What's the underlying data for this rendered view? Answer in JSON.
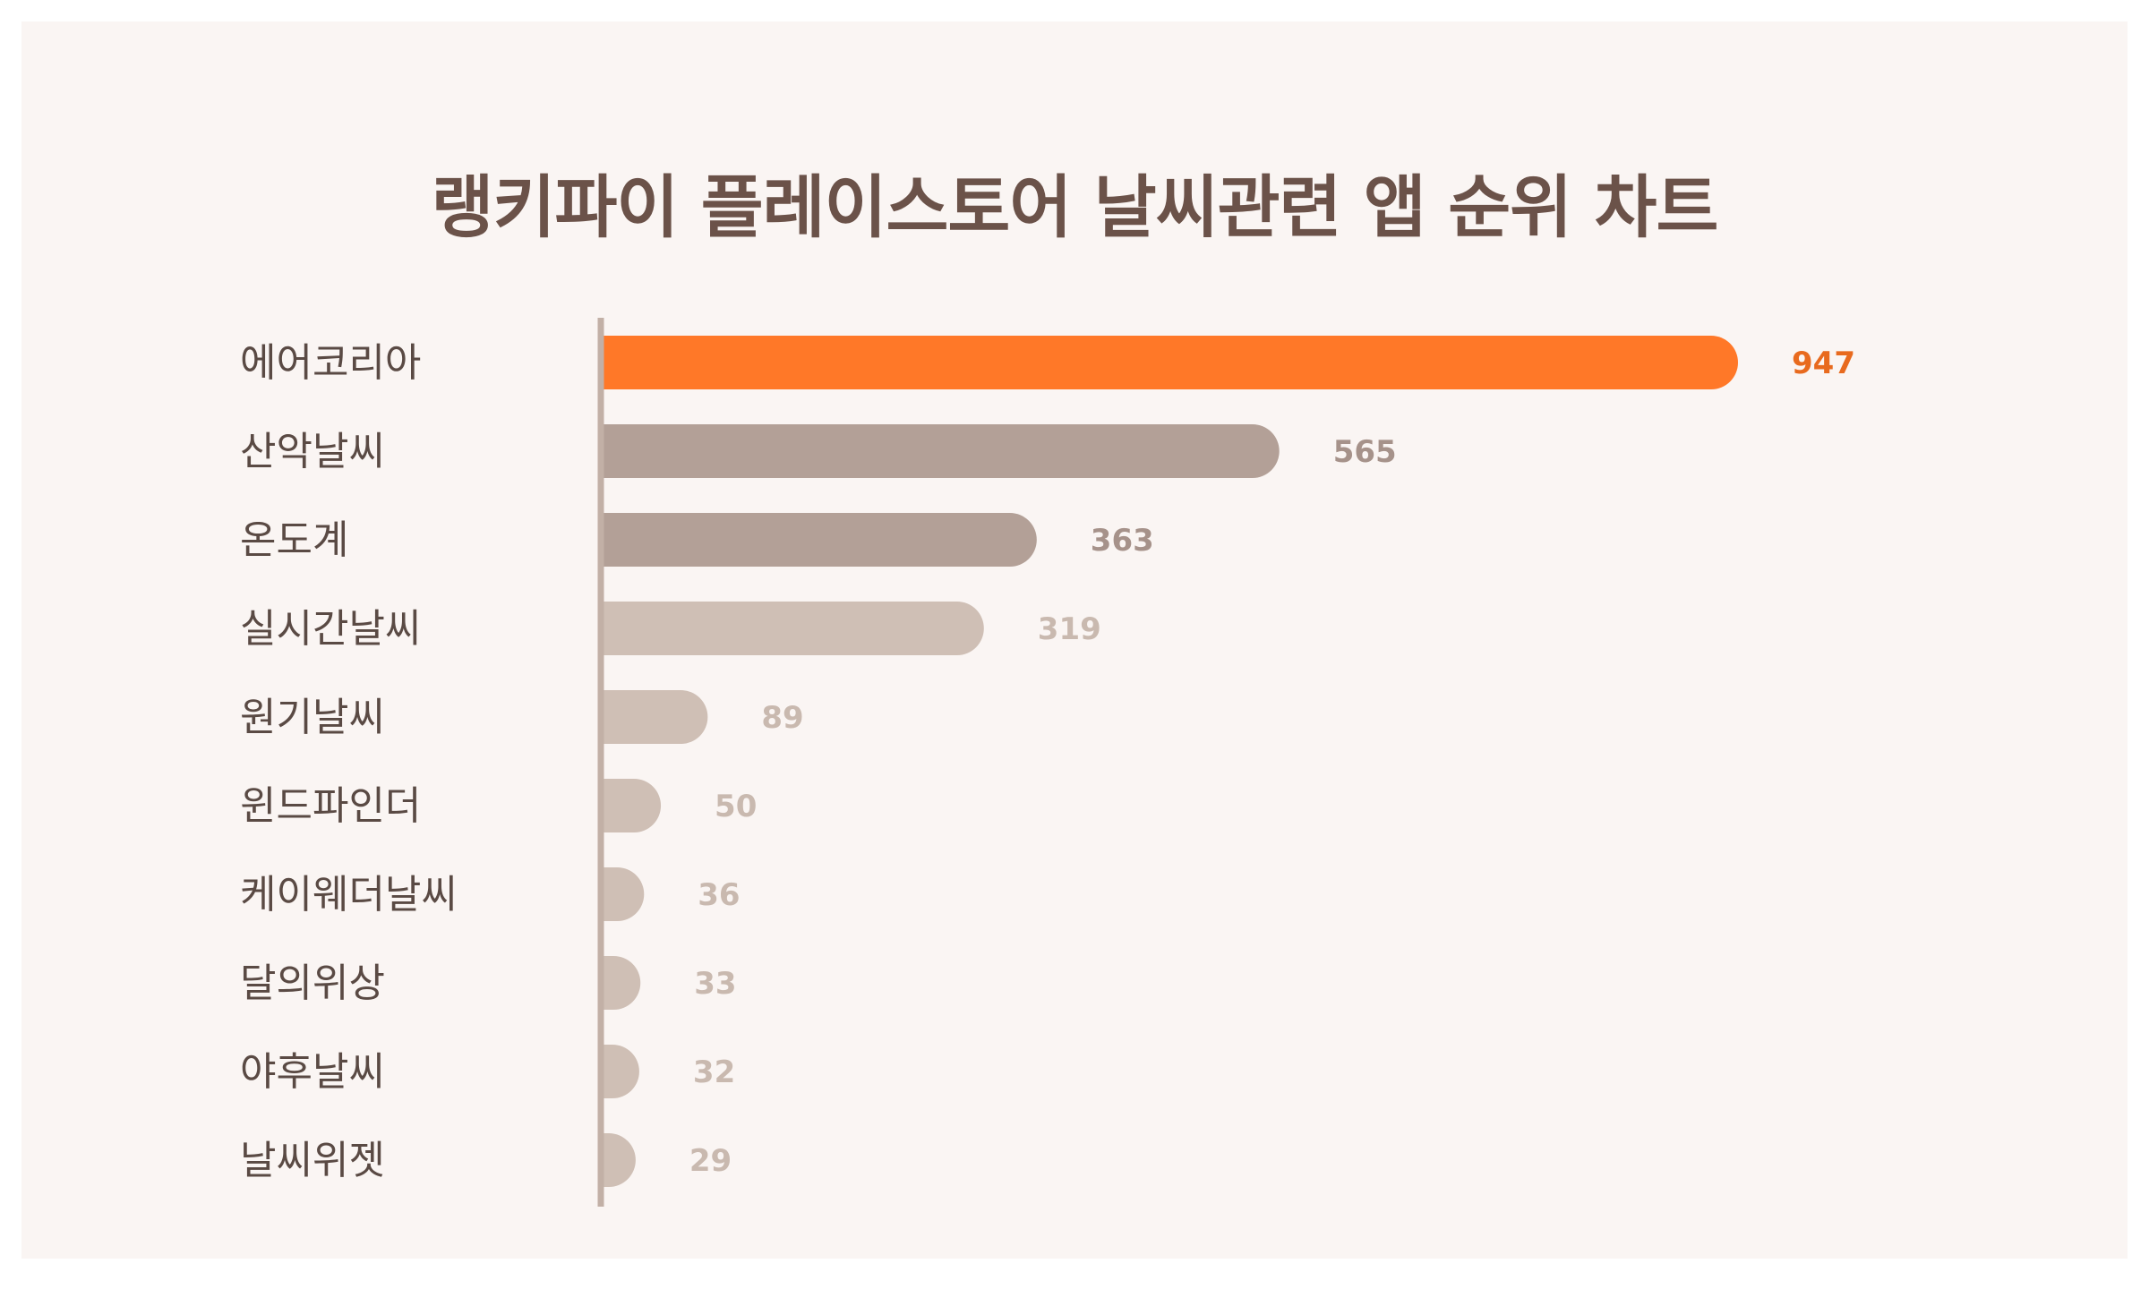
{
  "chart_data": {
    "type": "bar",
    "orientation": "horizontal",
    "title": "랭키파이 플레이스토어 날씨관련 앱 순위 차트",
    "categories": [
      "에어코리아",
      "산악날씨",
      "온도계",
      "실시간날씨",
      "원기날씨",
      "윈드파인더",
      "케이웨더날씨",
      "달의위상",
      "야후날씨",
      "날씨위젯"
    ],
    "values": [
      947,
      565,
      363,
      319,
      89,
      50,
      36,
      33,
      32,
      29
    ],
    "xlim": [
      0,
      947
    ],
    "grid": false,
    "legend": "none",
    "colors": {
      "highlight": "#ff7828",
      "mid": "#b3a097",
      "light": "#cfbfb5",
      "highlight_label": "#e86a1e",
      "mid_label": "#a6928a",
      "light_label": "#c9b9af",
      "axis": "#c2b0a6",
      "category_text": "#5a4a44"
    }
  }
}
